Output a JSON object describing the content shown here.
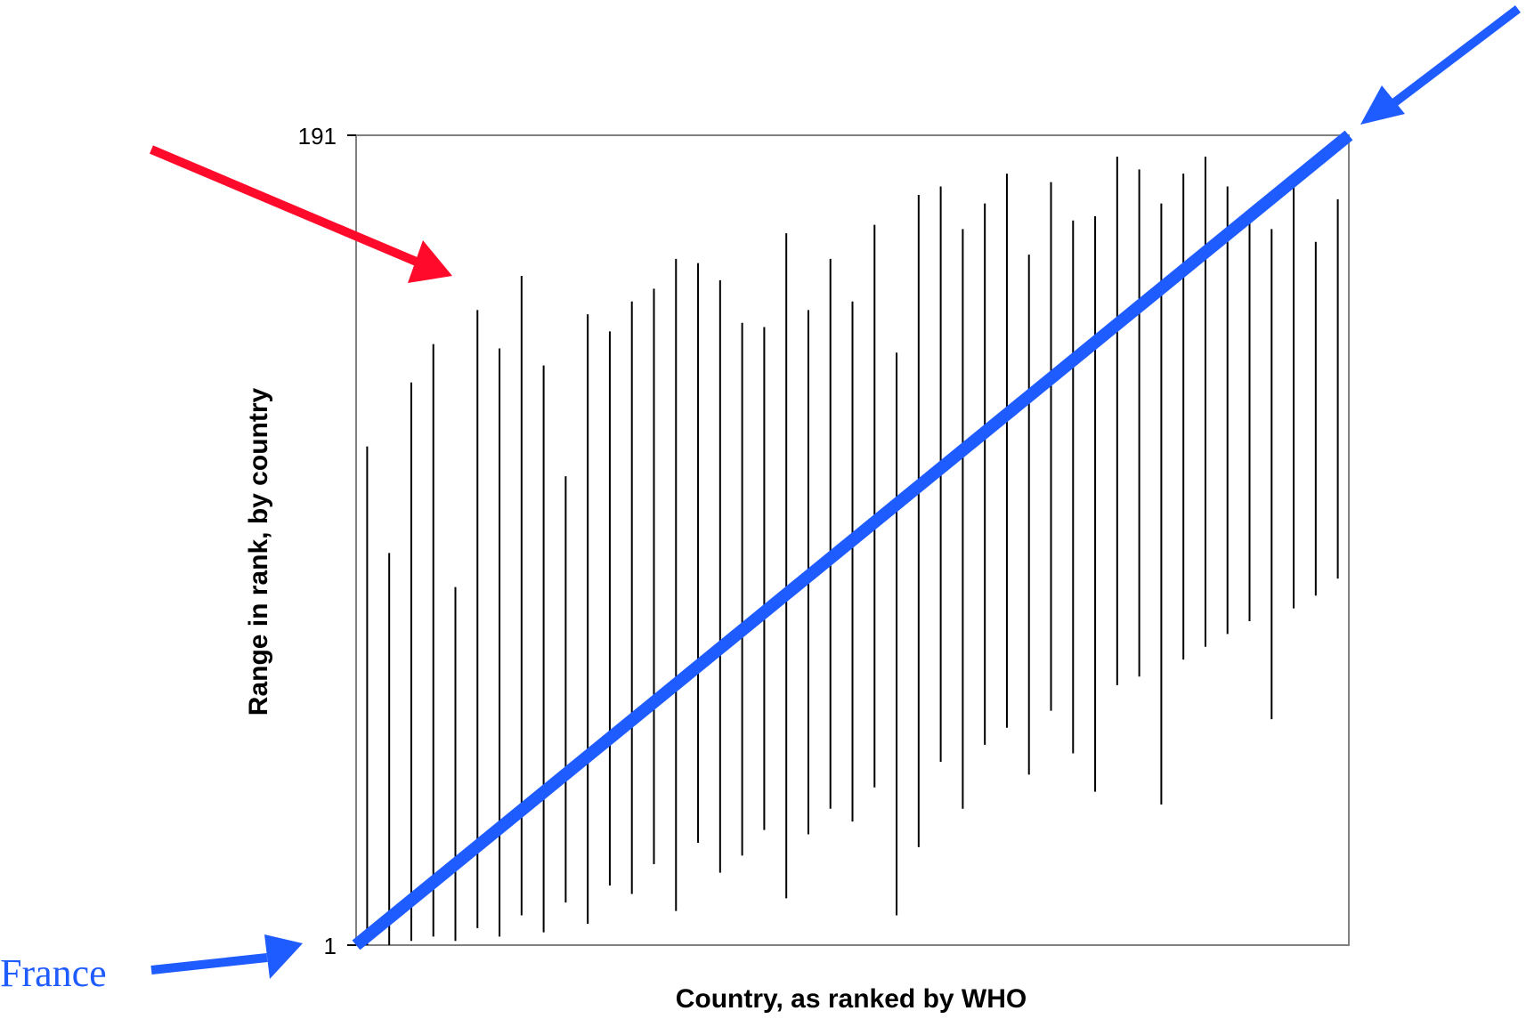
{
  "chart_data": {
    "type": "bar",
    "subtype": "floating-range",
    "xlabel": "Country, as ranked by WHO",
    "ylabel": "Range in rank, by country",
    "ylim": [
      1,
      191
    ],
    "xlim": [
      1,
      191
    ],
    "yticks": [
      "191",
      "1"
    ],
    "grid": false,
    "bar_color": "#000000",
    "reference_line": {
      "from": [
        1,
        1
      ],
      "to": [
        191,
        191
      ],
      "color": "#1f5cff"
    },
    "annotations": [
      {
        "text": "France",
        "color": "#1f5cff"
      },
      {
        "text": "",
        "color": "#ff0a2a"
      },
      {
        "text": "",
        "color": "#1f5cff"
      }
    ],
    "ranges": [
      [
        1,
        118
      ],
      [
        1,
        93
      ],
      [
        2,
        133
      ],
      [
        3,
        142
      ],
      [
        2,
        85
      ],
      [
        5,
        150
      ],
      [
        3,
        141
      ],
      [
        8,
        158
      ],
      [
        4,
        137
      ],
      [
        11,
        111
      ],
      [
        6,
        149
      ],
      [
        15,
        145
      ],
      [
        13,
        152
      ],
      [
        20,
        155
      ],
      [
        9,
        162
      ],
      [
        25,
        161
      ],
      [
        18,
        157
      ],
      [
        22,
        147
      ],
      [
        28,
        146
      ],
      [
        12,
        168
      ],
      [
        27,
        150
      ],
      [
        33,
        162
      ],
      [
        30,
        152
      ],
      [
        38,
        170
      ],
      [
        8,
        140
      ],
      [
        24,
        177
      ],
      [
        44,
        179
      ],
      [
        33,
        169
      ],
      [
        48,
        175
      ],
      [
        52,
        182
      ],
      [
        41,
        163
      ],
      [
        56,
        180
      ],
      [
        46,
        171
      ],
      [
        37,
        172
      ],
      [
        62,
        186
      ],
      [
        64,
        183
      ],
      [
        34,
        175
      ],
      [
        68,
        182
      ],
      [
        71,
        186
      ],
      [
        74,
        179
      ],
      [
        77,
        172
      ],
      [
        54,
        169
      ],
      [
        80,
        181
      ],
      [
        83,
        166
      ],
      [
        87,
        176
      ]
    ]
  }
}
